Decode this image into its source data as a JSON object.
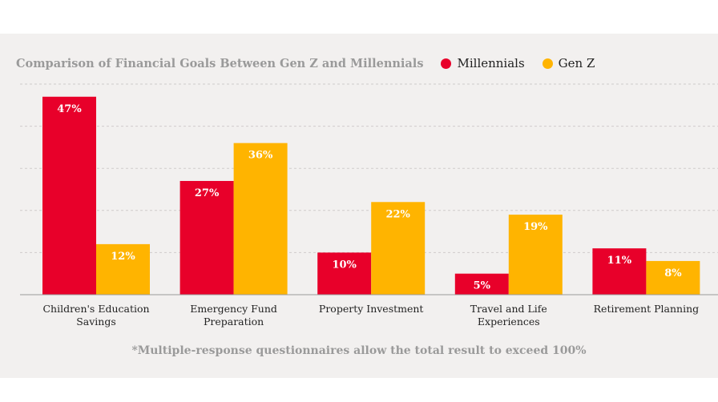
{
  "chart_data": {
    "type": "bar",
    "title": "Comparison of Financial Goals Between Gen Z and Millennials",
    "categories": [
      [
        "Children's Education",
        "Savings"
      ],
      [
        "Emergency Fund",
        "Preparation"
      ],
      [
        "Property Investment"
      ],
      [
        "Travel and Life",
        "Experiences"
      ],
      [
        "Retirement Planning"
      ]
    ],
    "series": [
      {
        "name": "Millennials",
        "color": "#e8002a",
        "values": [
          47,
          27,
          10,
          5,
          11
        ],
        "labels": [
          "47%",
          "27%",
          "10%",
          "5%",
          "11%"
        ]
      },
      {
        "name": "Gen Z",
        "color": "#ffb400",
        "values": [
          12,
          36,
          22,
          19,
          8
        ],
        "labels": [
          "12%",
          "36%",
          "22%",
          "19%",
          "8%"
        ]
      }
    ],
    "ylim": [
      0,
      50
    ],
    "grid": true,
    "legend_position": "top"
  },
  "footnote": "*Multiple-response questionnaires allow the total result to exceed 100%"
}
